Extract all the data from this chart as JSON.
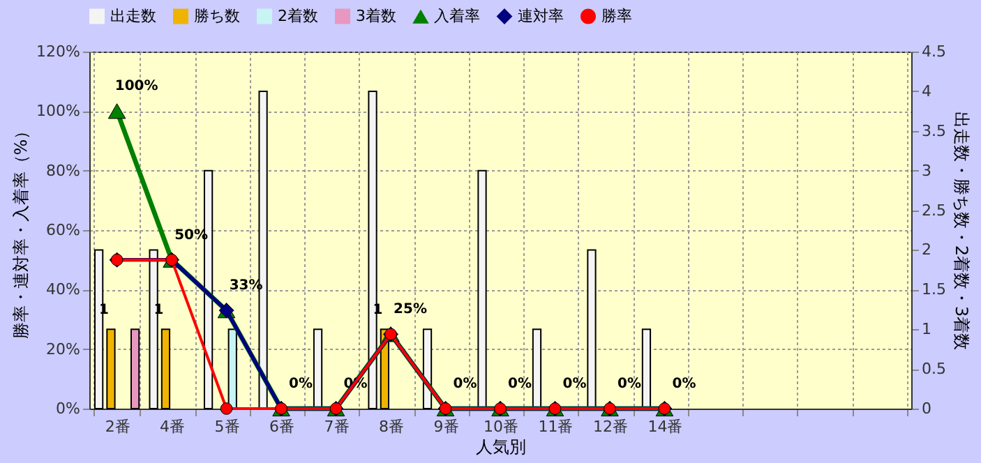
{
  "chart_data": {
    "type": "bar",
    "xlabel": "人気別",
    "ylabel": "勝率・連対率・入着率（%）",
    "y2label": "出走数・勝ち数・2着数・3着数",
    "categories": [
      "2番",
      "4番",
      "5番",
      "6番",
      "7番",
      "8番",
      "9番",
      "10番",
      "11番",
      "12番",
      "14番",
      null,
      null,
      null,
      null
    ],
    "series": [
      {
        "name": "出走数",
        "axis": "y2",
        "color": "#f4f4f4",
        "values": [
          2,
          2,
          3,
          4,
          1,
          4,
          1,
          3,
          1,
          2,
          1,
          null,
          null,
          null,
          null
        ]
      },
      {
        "name": "勝ち数",
        "axis": "y2",
        "color": "#f0b400",
        "values": [
          1,
          1,
          0,
          0,
          0,
          1,
          0,
          0,
          0,
          0,
          0,
          null,
          null,
          null,
          null
        ],
        "value_labels": [
          "1",
          "1",
          null,
          null,
          null,
          "1",
          null,
          null,
          null,
          null,
          null,
          null,
          null,
          null,
          null
        ]
      },
      {
        "name": "2着数",
        "axis": "y2",
        "color": "#c8f4f4",
        "values": [
          0,
          0,
          1,
          0,
          0,
          0,
          0,
          0,
          0,
          0,
          0,
          null,
          null,
          null,
          null
        ]
      },
      {
        "name": "3着数",
        "axis": "y2",
        "color": "#e898c0",
        "values": [
          1,
          0,
          0,
          0,
          0,
          0,
          0,
          0,
          0,
          0,
          0,
          null,
          null,
          null,
          null
        ]
      },
      {
        "name": "入着率",
        "type": "line",
        "axis": "y",
        "color": "#008000",
        "marker": "triangle",
        "values": [
          100,
          50,
          33,
          0,
          0,
          25,
          0,
          0,
          0,
          0,
          0,
          null,
          null,
          null,
          null
        ],
        "value_labels": [
          "100%",
          "50%",
          "33%",
          "0%",
          "0%",
          "25%",
          "0%",
          "0%",
          "0%",
          "0%",
          "0%",
          null,
          null,
          null,
          null
        ]
      },
      {
        "name": "連対率",
        "type": "line",
        "axis": "y",
        "color": "#000080",
        "marker": "diamond",
        "values": [
          50,
          50,
          33,
          0,
          0,
          25,
          0,
          0,
          0,
          0,
          0,
          null,
          null,
          null,
          null
        ]
      },
      {
        "name": "勝率",
        "type": "line",
        "axis": "y",
        "color": "#ff0000",
        "marker": "circle",
        "values": [
          50,
          50,
          0,
          0,
          0,
          25,
          0,
          0,
          0,
          0,
          0,
          null,
          null,
          null,
          null
        ]
      }
    ],
    "ylim": [
      0,
      120
    ],
    "yticks": [
      {
        "value": 0,
        "label": "0%"
      },
      {
        "value": 20,
        "label": "20%"
      },
      {
        "value": 40,
        "label": "40%"
      },
      {
        "value": 60,
        "label": "60%"
      },
      {
        "value": 80,
        "label": "80%"
      },
      {
        "value": 100,
        "label": "100%"
      },
      {
        "value": 120,
        "label": "120%"
      }
    ],
    "y2lim": [
      0,
      4.5
    ],
    "y2ticks": [
      0,
      0.5,
      1,
      1.5,
      2,
      2.5,
      3,
      3.5,
      4,
      4.5
    ],
    "grid": true,
    "legend": "top"
  }
}
